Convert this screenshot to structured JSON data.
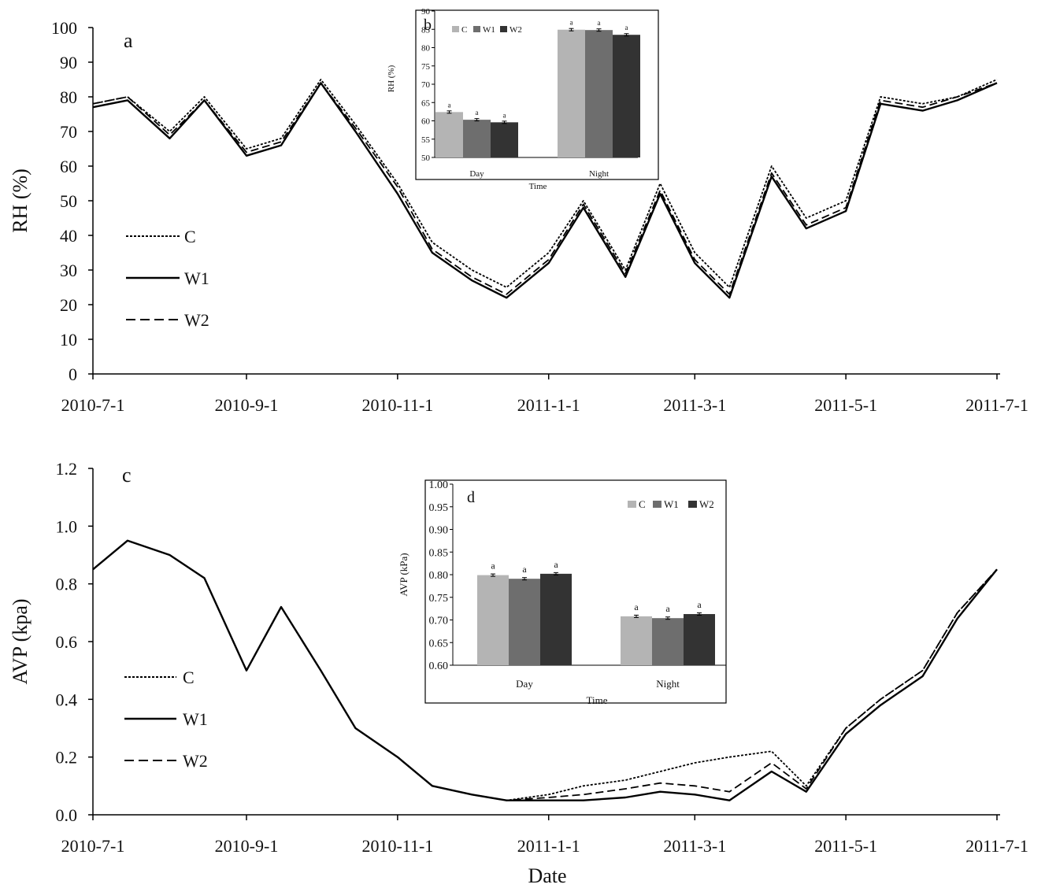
{
  "chart_data": [
    {
      "panel_label": "a",
      "type": "line",
      "title": "",
      "ylabel": "RH (%)",
      "xlabel": "",
      "ylim": [
        0,
        100
      ],
      "yticks": [
        "0",
        "10",
        "20",
        "30",
        "40",
        "50",
        "60",
        "70",
        "80",
        "90",
        "100"
      ],
      "x_range": [
        "2010-7-1",
        "2011-7-1"
      ],
      "xticks": [
        "2010-7-1",
        "2010-9-1",
        "2010-11-1",
        "2011-1-1",
        "2011-3-1",
        "2011-5-1",
        "2011-7-1"
      ],
      "legend": [
        "C",
        "W1",
        "W2"
      ],
      "legend_position": "left-middle",
      "x": [
        "2010-7-1",
        "2010-7-15",
        "2010-8-1",
        "2010-8-15",
        "2010-9-1",
        "2010-9-15",
        "2010-10-1",
        "2010-10-15",
        "2010-11-1",
        "2010-11-15",
        "2010-12-1",
        "2010-12-15",
        "2011-1-1",
        "2011-1-15",
        "2011-2-1",
        "2011-2-15",
        "2011-3-1",
        "2011-3-15",
        "2011-4-1",
        "2011-4-15",
        "2011-5-1",
        "2011-5-15",
        "2011-6-1",
        "2011-6-15",
        "2011-7-1"
      ],
      "series": [
        {
          "name": "C",
          "values": [
            78,
            80,
            70,
            80,
            65,
            68,
            85,
            72,
            55,
            38,
            30,
            25,
            35,
            50,
            30,
            55,
            35,
            25,
            60,
            45,
            50,
            80,
            78,
            80,
            85
          ]
        },
        {
          "name": "W1",
          "values": [
            77,
            79,
            68,
            79,
            63,
            66,
            84,
            70,
            52,
            35,
            27,
            22,
            32,
            48,
            28,
            52,
            32,
            22,
            57,
            42,
            47,
            78,
            76,
            79,
            84
          ]
        },
        {
          "name": "W2",
          "values": [
            78,
            80,
            69,
            79,
            64,
            67,
            84,
            71,
            54,
            36,
            28,
            23,
            33,
            49,
            29,
            53,
            33,
            23,
            58,
            43,
            48,
            79,
            77,
            80,
            84
          ]
        }
      ]
    },
    {
      "panel_label": "b",
      "type": "bar",
      "inset": true,
      "ylabel": "RH (%)",
      "xlabel": "Time",
      "ylim": [
        50,
        90
      ],
      "yticks": [
        "50",
        "55",
        "60",
        "65",
        "70",
        "75",
        "80",
        "85",
        "90"
      ],
      "categories": [
        "Day",
        "Night"
      ],
      "legend": [
        "C",
        "W1",
        "W2"
      ],
      "legend_position": "top-left",
      "series": [
        {
          "name": "C",
          "values": [
            62.4,
            84.9
          ],
          "sig": [
            "a",
            "a"
          ]
        },
        {
          "name": "W1",
          "values": [
            60.3,
            84.8
          ],
          "sig": [
            "a",
            "a"
          ]
        },
        {
          "name": "W2",
          "values": [
            59.6,
            83.5
          ],
          "sig": [
            "a",
            "a"
          ]
        }
      ],
      "colors": [
        "#b4b4b4",
        "#6e6e6e",
        "#333333"
      ]
    },
    {
      "panel_label": "c",
      "type": "line",
      "title": "",
      "ylabel": "AVP (kpa)",
      "xlabel": "Date",
      "ylim": [
        0,
        1.2
      ],
      "yticks": [
        "0.0",
        "0.2",
        "0.4",
        "0.6",
        "0.8",
        "1.0",
        "1.2"
      ],
      "x_range": [
        "2010-7-1",
        "2011-7-1"
      ],
      "xticks": [
        "2010-7-1",
        "2010-9-1",
        "2010-11-1",
        "2011-1-1",
        "2011-3-1",
        "2011-5-1",
        "2011-7-1"
      ],
      "legend": [
        "C",
        "W1",
        "W2"
      ],
      "legend_position": "left-middle",
      "x": [
        "2010-7-1",
        "2010-7-15",
        "2010-8-1",
        "2010-8-15",
        "2010-9-1",
        "2010-9-15",
        "2010-10-1",
        "2010-10-15",
        "2010-11-1",
        "2010-11-15",
        "2010-12-1",
        "2010-12-15",
        "2011-1-1",
        "2011-1-15",
        "2011-2-1",
        "2011-2-15",
        "2011-3-1",
        "2011-3-15",
        "2011-4-1",
        "2011-4-15",
        "2011-5-1",
        "2011-5-15",
        "2011-6-1",
        "2011-6-15",
        "2011-7-1"
      ],
      "series": [
        {
          "name": "C",
          "values": [
            0.85,
            0.95,
            0.9,
            0.82,
            0.5,
            0.72,
            0.5,
            0.3,
            0.2,
            0.1,
            0.07,
            0.05,
            0.07,
            0.1,
            0.12,
            0.15,
            0.18,
            0.2,
            0.22,
            0.1,
            0.3,
            0.4,
            0.5,
            0.7,
            0.85
          ]
        },
        {
          "name": "W1",
          "values": [
            0.85,
            0.95,
            0.9,
            0.82,
            0.5,
            0.72,
            0.5,
            0.3,
            0.2,
            0.1,
            0.07,
            0.05,
            0.05,
            0.05,
            0.06,
            0.08,
            0.07,
            0.05,
            0.15,
            0.08,
            0.28,
            0.38,
            0.48,
            0.68,
            0.85
          ]
        },
        {
          "name": "W2",
          "values": [
            0.85,
            0.95,
            0.9,
            0.82,
            0.5,
            0.72,
            0.5,
            0.3,
            0.2,
            0.1,
            0.07,
            0.05,
            0.06,
            0.07,
            0.09,
            0.11,
            0.1,
            0.08,
            0.18,
            0.09,
            0.3,
            0.4,
            0.5,
            0.7,
            0.85
          ]
        }
      ]
    },
    {
      "panel_label": "d",
      "type": "bar",
      "inset": true,
      "ylabel": "AVP (kPa)",
      "xlabel": "Time",
      "ylim": [
        0.6,
        1.0
      ],
      "yticks": [
        "0.60",
        "0.65",
        "0.70",
        "0.75",
        "0.80",
        "0.85",
        "0.90",
        "0.95",
        "1.00"
      ],
      "categories": [
        "Day",
        "Night"
      ],
      "legend": [
        "C",
        "W1",
        "W2"
      ],
      "legend_position": "top-right",
      "series": [
        {
          "name": "C",
          "values": [
            0.799,
            0.708
          ],
          "sig": [
            "a",
            "a"
          ]
        },
        {
          "name": "W1",
          "values": [
            0.791,
            0.704
          ],
          "sig": [
            "a",
            "a"
          ]
        },
        {
          "name": "W2",
          "values": [
            0.802,
            0.713
          ],
          "sig": [
            "a",
            "a"
          ]
        }
      ],
      "colors": [
        "#b4b4b4",
        "#6e6e6e",
        "#333333"
      ]
    }
  ]
}
